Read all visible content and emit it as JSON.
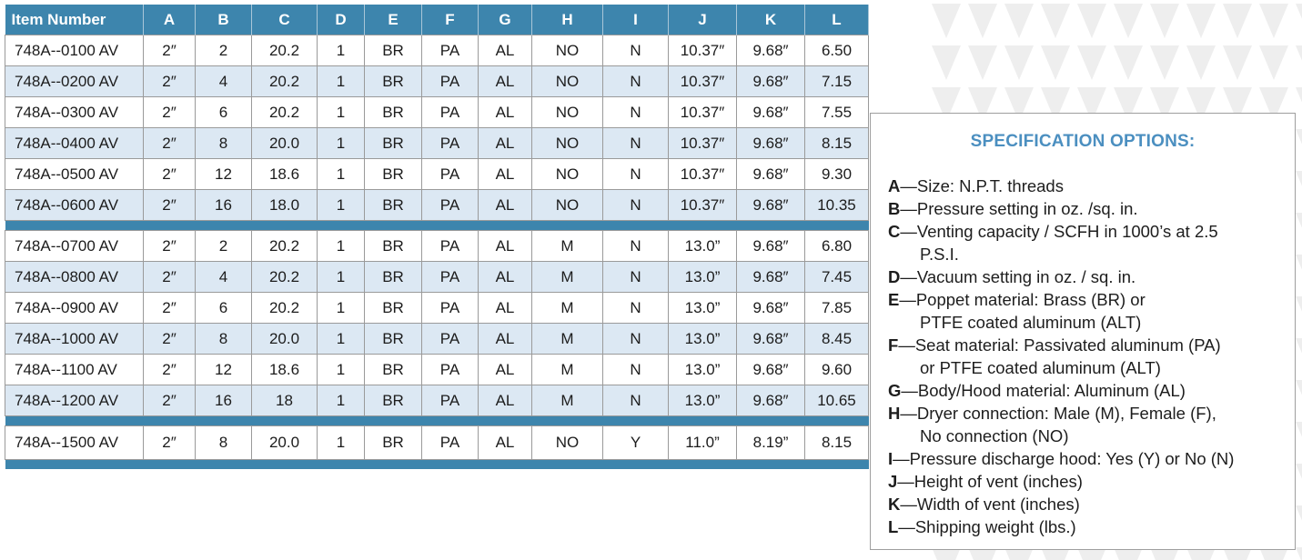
{
  "table": {
    "headers": [
      "Item Number",
      "A",
      "B",
      "C",
      "D",
      "E",
      "F",
      "G",
      "H",
      "I",
      "J",
      "K",
      "L"
    ],
    "groups": [
      [
        [
          "748A--0100 AV",
          "2″",
          "2",
          "20.2",
          "1",
          "BR",
          "PA",
          "AL",
          "NO",
          "N",
          "10.37″",
          "9.68″",
          "6.50"
        ],
        [
          "748A--0200 AV",
          "2″",
          "4",
          "20.2",
          "1",
          "BR",
          "PA",
          "AL",
          "NO",
          "N",
          "10.37″",
          "9.68″",
          "7.15"
        ],
        [
          "748A--0300 AV",
          "2″",
          "6",
          "20.2",
          "1",
          "BR",
          "PA",
          "AL",
          "NO",
          "N",
          "10.37″",
          "9.68″",
          "7.55"
        ],
        [
          "748A--0400 AV",
          "2″",
          "8",
          "20.0",
          "1",
          "BR",
          "PA",
          "AL",
          "NO",
          "N",
          "10.37″",
          "9.68″",
          "8.15"
        ],
        [
          "748A--0500 AV",
          "2″",
          "12",
          "18.6",
          "1",
          "BR",
          "PA",
          "AL",
          "NO",
          "N",
          "10.37″",
          "9.68″",
          "9.30"
        ],
        [
          "748A--0600 AV",
          "2″",
          "16",
          "18.0",
          "1",
          "BR",
          "PA",
          "AL",
          "NO",
          "N",
          "10.37″",
          "9.68″",
          "10.35"
        ]
      ],
      [
        [
          "748A--0700 AV",
          "2″",
          "2",
          "20.2",
          "1",
          "BR",
          "PA",
          "AL",
          "M",
          "N",
          "13.0”",
          "9.68″",
          "6.80"
        ],
        [
          "748A--0800 AV",
          "2″",
          "4",
          "20.2",
          "1",
          "BR",
          "PA",
          "AL",
          "M",
          "N",
          "13.0”",
          "9.68″",
          "7.45"
        ],
        [
          "748A--0900 AV",
          "2″",
          "6",
          "20.2",
          "1",
          "BR",
          "PA",
          "AL",
          "M",
          "N",
          "13.0”",
          "9.68″",
          "7.85"
        ],
        [
          "748A--1000 AV",
          "2″",
          "8",
          "20.0",
          "1",
          "BR",
          "PA",
          "AL",
          "M",
          "N",
          "13.0”",
          "9.68″",
          "8.45"
        ],
        [
          "748A--1100 AV",
          "2″",
          "12",
          "18.6",
          "1",
          "BR",
          "PA",
          "AL",
          "M",
          "N",
          "13.0”",
          "9.68″",
          "9.60"
        ],
        [
          "748A--1200 AV",
          "2″",
          "16",
          "18",
          "1",
          "BR",
          "PA",
          "AL",
          "M",
          "N",
          "13.0”",
          "9.68″",
          "10.65"
        ]
      ],
      [
        [
          "748A--1500 AV",
          "2″",
          "8",
          "20.0",
          "1",
          "BR",
          "PA",
          "AL",
          "NO",
          "Y",
          "11.0”",
          "8.19”",
          "8.15"
        ]
      ]
    ]
  },
  "spec": {
    "title": "SPECIFICATION OPTIONS:",
    "items": [
      {
        "key": "A",
        "text": "—Size: N.P.T. threads",
        "cont": []
      },
      {
        "key": "B",
        "text": "—Pressure setting in oz. /sq. in.",
        "cont": []
      },
      {
        "key": "C",
        "text": "—Venting capacity / SCFH in 1000’s at 2.5",
        "cont": [
          "P.S.I."
        ]
      },
      {
        "key": "D",
        "text": "—Vacuum setting in oz. / sq. in.",
        "cont": []
      },
      {
        "key": "E",
        "text": "—Poppet material: Brass (BR) or",
        "cont": [
          "PTFE coated aluminum (ALT)"
        ]
      },
      {
        "key": "F",
        "text": "—Seat material: Passivated aluminum (PA)",
        "cont": [
          "or PTFE coated aluminum (ALT)"
        ]
      },
      {
        "key": "G",
        "text": "—Body/Hood material: Aluminum (AL)",
        "cont": []
      },
      {
        "key": "H",
        "text": "—Dryer connection: Male (M), Female (F),",
        "cont": [
          "No connection (NO)"
        ]
      },
      {
        "key": "I",
        "text": "—Pressure discharge hood: Yes (Y) or No (N)",
        "cont": []
      },
      {
        "key": "J",
        "text": "—Height of vent (inches)",
        "cont": []
      },
      {
        "key": "K",
        "text": "—Width of vent (inches)",
        "cont": []
      },
      {
        "key": "L",
        "text": "—Shipping weight (lbs.)",
        "cont": []
      }
    ]
  }
}
